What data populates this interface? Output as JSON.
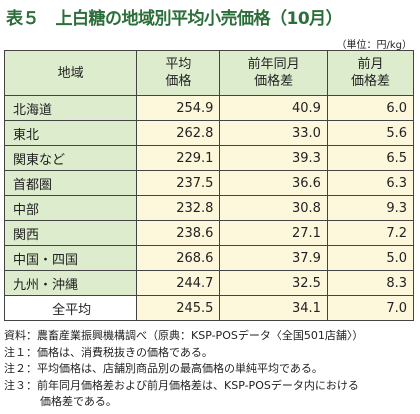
{
  "header": {
    "title": "表５　上白糖の地域別平均小売価格（10月）",
    "unit": "（単位：円/kg）"
  },
  "table": {
    "columns": [
      "地域",
      "平均\n価格",
      "前年同月\n価格差",
      "前月\n価格差"
    ],
    "rows": [
      [
        "北海道",
        "254.9",
        "40.9",
        "6.0"
      ],
      [
        "東北",
        "262.8",
        "33.0",
        "5.6"
      ],
      [
        "関東など",
        "229.1",
        "39.3",
        "6.5"
      ],
      [
        "首都圏",
        "237.5",
        "36.6",
        "6.3"
      ],
      [
        "中部",
        "232.8",
        "30.8",
        "9.3"
      ],
      [
        "関西",
        "238.6",
        "27.1",
        "7.2"
      ],
      [
        "中国・四国",
        "268.6",
        "37.9",
        "5.0"
      ],
      [
        "九州・沖縄",
        "244.7",
        "32.5",
        "8.3"
      ],
      [
        "全平均",
        "245.5",
        "34.1",
        "7.0"
      ]
    ]
  },
  "notes": [
    "資料：農畜産業振興機構調べ（原典：KSP-POSデータ〈全国501店舗〉）",
    "注１：価格は、消費税抜きの価格である。",
    "注２：平均価格は、店舗別商品別の最高価格の単純平均である。",
    "注３：前年同月価格差および前月価格差は、KSP-POSデータ内における",
    "価格差である。"
  ]
}
